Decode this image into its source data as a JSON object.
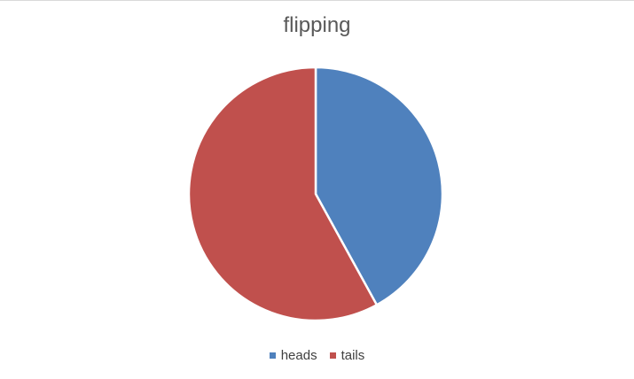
{
  "chart_data": {
    "type": "pie",
    "title": "flipping",
    "categories": [
      "heads",
      "tails"
    ],
    "values": [
      42,
      58
    ],
    "colors": [
      "#4f81bd",
      "#c0504d"
    ],
    "legend_position": "bottom"
  }
}
